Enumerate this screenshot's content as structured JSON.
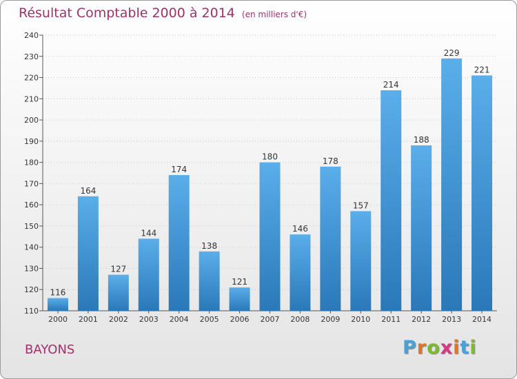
{
  "title": "Résultat Comptable 2000 à 2014",
  "subtitle": "(en milliers d'€)",
  "place": "BAYONS",
  "logo": {
    "text": "Proxiti",
    "colors": [
      "#4aa1d8",
      "#e8731e",
      "#7dbb2e",
      "#d43a83",
      "#e8731e",
      "#4aa1d8",
      "#7dbb2e"
    ]
  },
  "chart_data": {
    "type": "bar",
    "categories": [
      "2000",
      "2001",
      "2002",
      "2003",
      "2004",
      "2005",
      "2006",
      "2007",
      "2008",
      "2009",
      "2010",
      "2011",
      "2012",
      "2013",
      "2014"
    ],
    "values": [
      116,
      164,
      127,
      144,
      174,
      138,
      121,
      180,
      146,
      178,
      157,
      214,
      188,
      229,
      221
    ],
    "ylim": [
      110,
      240
    ],
    "yticks": [
      110,
      120,
      130,
      140,
      150,
      160,
      170,
      180,
      190,
      200,
      210,
      220,
      230,
      240
    ],
    "grid": true,
    "bar_color_top": "#5aaeea",
    "bar_color_bottom": "#2a78b8"
  }
}
